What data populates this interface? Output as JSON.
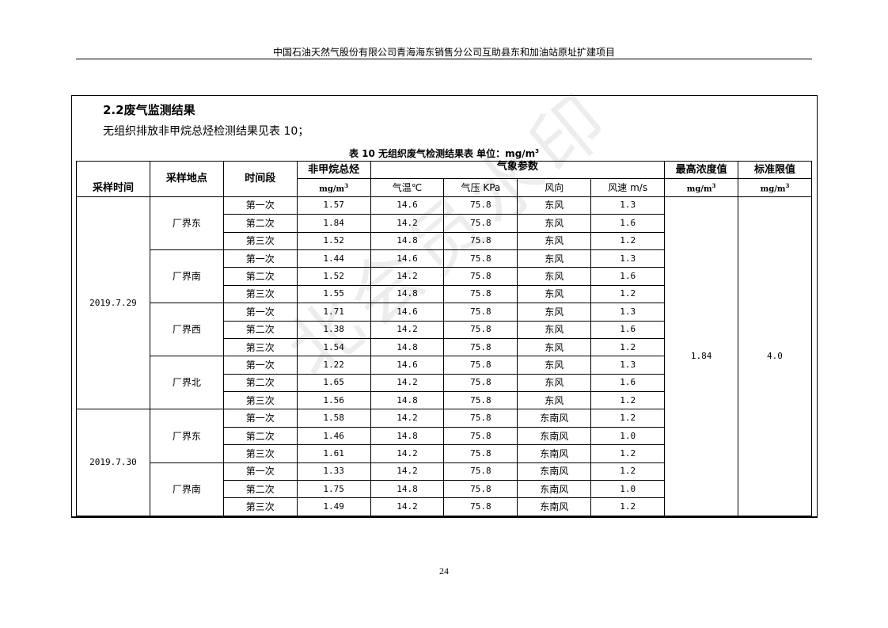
{
  "header": {
    "title": "中国石油天然气股份有限公司青海海东销售分公司互助县东和加油站原址扩建项目"
  },
  "section": {
    "title": "2.2废气监测结果",
    "intro": "无组织排放非甲烷总烃检测结果见表 10；"
  },
  "table": {
    "caption": "表 10   无组织废气检测结果表     单位：mg/m",
    "caption_sup": "3",
    "headers": {
      "sample_time": "采样时间",
      "sample_site": "采样地点",
      "period": "时间段",
      "nmhc": "非甲烷总烃",
      "unit": "mg/m",
      "unit_sup": "3",
      "weather": "气象参数",
      "temp": "气温℃",
      "pressure": "气压 KPa",
      "wind_dir": "风向",
      "wind_speed": "风速 m/s",
      "max": "最高浓度值",
      "limit": "标准限值"
    },
    "max_value": "1.84",
    "limit_value": "4.0",
    "groups": [
      {
        "date": "2019.7.29",
        "sites": [
          {
            "site": "厂界东",
            "rows": [
              [
                "第一次",
                "1.57",
                "14.6",
                "75.8",
                "东风",
                "1.3"
              ],
              [
                "第二次",
                "1.84",
                "14.2",
                "75.8",
                "东风",
                "1.6"
              ],
              [
                "第三次",
                "1.52",
                "14.8",
                "75.8",
                "东风",
                "1.2"
              ]
            ]
          },
          {
            "site": "厂界南",
            "rows": [
              [
                "第一次",
                "1.44",
                "14.6",
                "75.8",
                "东风",
                "1.3"
              ],
              [
                "第二次",
                "1.52",
                "14.2",
                "75.8",
                "东风",
                "1.6"
              ],
              [
                "第三次",
                "1.55",
                "14.8",
                "75.8",
                "东风",
                "1.2"
              ]
            ]
          },
          {
            "site": "厂界西",
            "rows": [
              [
                "第一次",
                "1.71",
                "14.6",
                "75.8",
                "东风",
                "1.3"
              ],
              [
                "第二次",
                "1.38",
                "14.2",
                "75.8",
                "东风",
                "1.6"
              ],
              [
                "第三次",
                "1.54",
                "14.8",
                "75.8",
                "东风",
                "1.2"
              ]
            ]
          },
          {
            "site": "厂界北",
            "rows": [
              [
                "第一次",
                "1.22",
                "14.6",
                "75.8",
                "东风",
                "1.3"
              ],
              [
                "第二次",
                "1.65",
                "14.2",
                "75.8",
                "东风",
                "1.6"
              ],
              [
                "第三次",
                "1.56",
                "14.8",
                "75.8",
                "东风",
                "1.2"
              ]
            ]
          }
        ]
      },
      {
        "date": "2019.7.30",
        "sites": [
          {
            "site": "厂界东",
            "rows": [
              [
                "第一次",
                "1.58",
                "14.2",
                "75.8",
                "东南风",
                "1.2"
              ],
              [
                "第二次",
                "1.46",
                "14.8",
                "75.8",
                "东南风",
                "1.0"
              ],
              [
                "第三次",
                "1.61",
                "14.2",
                "75.8",
                "东南风",
                "1.2"
              ]
            ]
          },
          {
            "site": "厂界南",
            "rows": [
              [
                "第一次",
                "1.33",
                "14.2",
                "75.8",
                "东南风",
                "1.2"
              ],
              [
                "第二次",
                "1.75",
                "14.8",
                "75.8",
                "东南风",
                "1.0"
              ],
              [
                "第三次",
                "1.49",
                "14.2",
                "75.8",
                "东南风",
                "1.2"
              ]
            ]
          }
        ]
      }
    ]
  },
  "watermark": "北会员水印",
  "footer": {
    "page_number": "24"
  }
}
